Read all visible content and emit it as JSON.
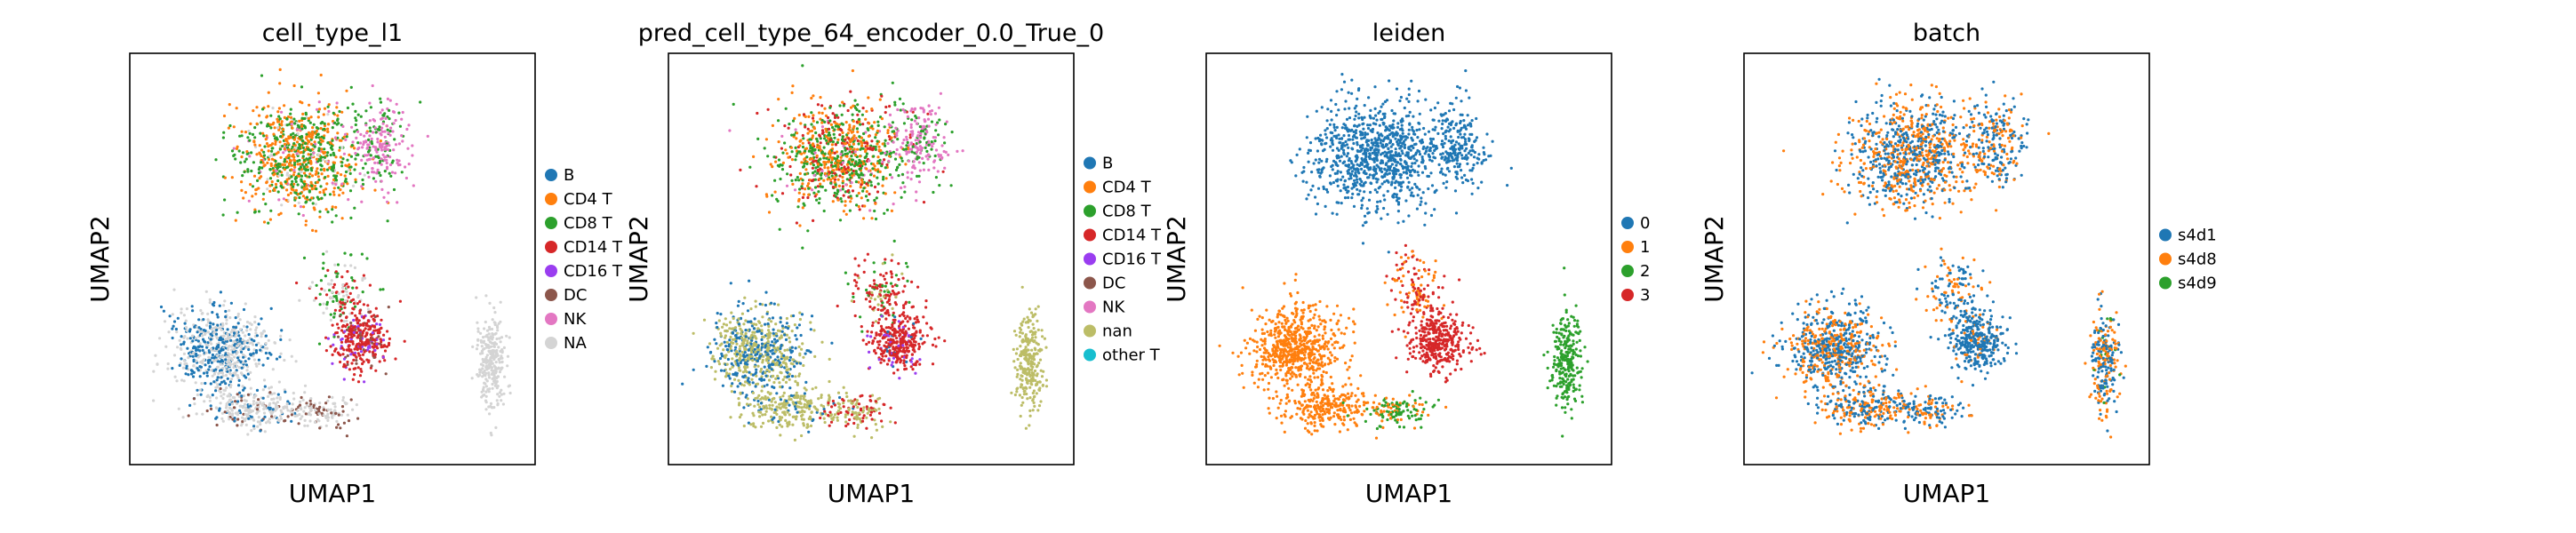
{
  "chart_data": [
    {
      "type": "scatter",
      "title": "cell_type_l1",
      "xlabel": "UMAP1",
      "ylabel": "UMAP2",
      "legend_position": "right",
      "categories": [
        {
          "name": "B",
          "color": "#1f77b4"
        },
        {
          "name": "CD4 T",
          "color": "#ff7f0e"
        },
        {
          "name": "CD8 T",
          "color": "#2ca02c"
        },
        {
          "name": "CD14 T",
          "color": "#d62728"
        },
        {
          "name": "CD16 T",
          "color": "#9a3df0"
        },
        {
          "name": "DC",
          "color": "#8c564b"
        },
        {
          "name": "NK",
          "color": "#e377c2"
        },
        {
          "name": "NA",
          "color": "#d4d4d4"
        }
      ]
    },
    {
      "type": "scatter",
      "title": "pred_cell_type_64_encoder_0.0_True_0",
      "xlabel": "UMAP1",
      "ylabel": "UMAP2",
      "legend_position": "right",
      "categories": [
        {
          "name": "B",
          "color": "#1f77b4"
        },
        {
          "name": "CD4 T",
          "color": "#ff7f0e"
        },
        {
          "name": "CD8 T",
          "color": "#2ca02c"
        },
        {
          "name": "CD14 T",
          "color": "#d62728"
        },
        {
          "name": "CD16 T",
          "color": "#9a3df0"
        },
        {
          "name": "DC",
          "color": "#8c564b"
        },
        {
          "name": "NK",
          "color": "#e377c2"
        },
        {
          "name": "nan",
          "color": "#bcbd67"
        },
        {
          "name": "other T",
          "color": "#17becf"
        }
      ]
    },
    {
      "type": "scatter",
      "title": "leiden",
      "xlabel": "UMAP1",
      "ylabel": "UMAP2",
      "legend_position": "right",
      "categories": [
        {
          "name": "0",
          "color": "#1f77b4"
        },
        {
          "name": "1",
          "color": "#ff7f0e"
        },
        {
          "name": "2",
          "color": "#2ca02c"
        },
        {
          "name": "3",
          "color": "#d62728"
        }
      ]
    },
    {
      "type": "scatter",
      "title": "batch",
      "xlabel": "UMAP1",
      "ylabel": "UMAP2",
      "legend_position": "right",
      "categories": [
        {
          "name": "s4d1",
          "color": "#1f77b4"
        },
        {
          "name": "s4d8",
          "color": "#ff7f0e"
        },
        {
          "name": "s4d9",
          "color": "#2ca02c"
        }
      ]
    }
  ]
}
